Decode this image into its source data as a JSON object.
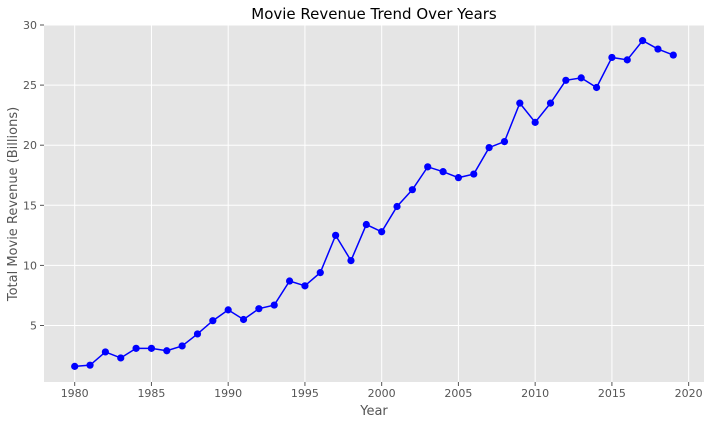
{
  "chart_data": {
    "type": "line",
    "title": "Movie Revenue Trend Over Years",
    "xlabel": "Year",
    "ylabel": "Total Movie Revenue (Billions)",
    "xlim": [
      1978,
      2021
    ],
    "ylim": [
      0.3,
      30
    ],
    "x_ticks": [
      1980,
      1985,
      1990,
      1995,
      2000,
      2005,
      2010,
      2015,
      2020
    ],
    "y_ticks": [
      5,
      10,
      15,
      20,
      25,
      30
    ],
    "grid": true,
    "style": {
      "background": "#e5e5e5",
      "grid_color": "#ffffff",
      "line_color": "#0000ff",
      "marker": "circle"
    },
    "series": [
      {
        "x": [
          1980,
          1981,
          1982,
          1983,
          1984,
          1985,
          1986,
          1987,
          1988,
          1989,
          1990,
          1991,
          1992,
          1993,
          1994,
          1995,
          1996,
          1997,
          1998,
          1999,
          2000,
          2001,
          2002,
          2003,
          2004,
          2005,
          2006,
          2007,
          2008,
          2009,
          2010,
          2011,
          2012,
          2013,
          2014,
          2015,
          2016,
          2017,
          2018,
          2019
        ],
        "y": [
          1.6,
          1.7,
          2.8,
          2.3,
          3.1,
          3.1,
          2.9,
          3.3,
          4.3,
          5.4,
          6.3,
          5.5,
          6.4,
          6.7,
          8.7,
          8.3,
          9.4,
          12.5,
          10.4,
          13.4,
          12.8,
          14.9,
          16.3,
          18.2,
          17.8,
          17.3,
          17.6,
          19.8,
          20.3,
          23.5,
          21.9,
          23.5,
          25.4,
          25.6,
          24.8,
          27.3,
          27.1,
          28.7,
          28.0,
          27.5
        ]
      }
    ]
  }
}
